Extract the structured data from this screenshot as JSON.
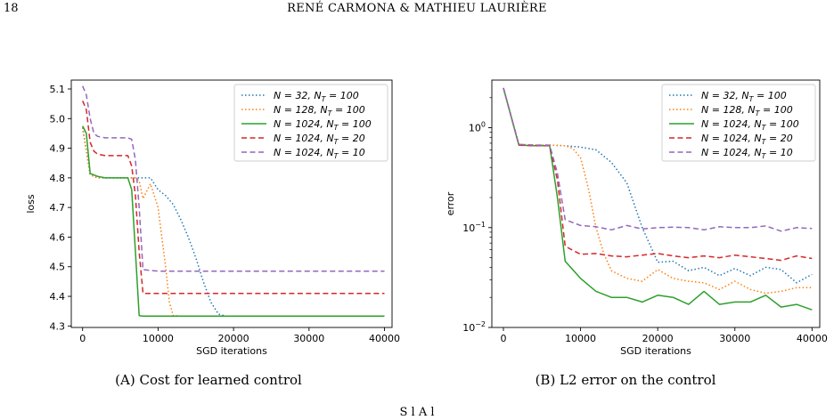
{
  "page": {
    "number": "18",
    "running_head": "RENÉ CARMONA & MATHIEU LAURIÈRE",
    "footer_fragment": "S                                    l   A         l"
  },
  "legend_labels": [
    {
      "n": "N = 32",
      "nt": "N",
      "sub": "T",
      "ntval": " = 100"
    },
    {
      "n": "N = 128",
      "nt": "N",
      "sub": "T",
      "ntval": " = 100"
    },
    {
      "n": "N = 1024",
      "nt": "N",
      "sub": "T",
      "ntval": " = 100"
    },
    {
      "n": "N = 1024",
      "nt": "N",
      "sub": "T",
      "ntval": " = 20"
    },
    {
      "n": "N = 1024",
      "nt": "N",
      "sub": "T",
      "ntval": " = 10"
    }
  ],
  "chart_data": [
    {
      "type": "line",
      "caption": "(A) Cost for learned control",
      "xlabel": "SGD iterations",
      "ylabel": "loss",
      "xlim": [
        -1500,
        41000
      ],
      "ylim": [
        4.295,
        5.13
      ],
      "xticks": [
        0,
        10000,
        20000,
        30000,
        40000
      ],
      "yticks": [
        4.3,
        4.4,
        4.5,
        4.6,
        4.7,
        4.8,
        4.9,
        5.0,
        5.1
      ],
      "legend_position": "top-right",
      "series": [
        {
          "name": "N = 32, N_T = 100",
          "color": "#1f77b4",
          "dash": "1.5,2.5",
          "x": [
            0,
            1000,
            2000,
            3000,
            4000,
            6000,
            7000,
            8000,
            9000,
            10000,
            11000,
            12000,
            13000,
            14000,
            15000,
            16000,
            17000,
            18000,
            19000,
            20000,
            30000,
            40000
          ],
          "y": [
            4.97,
            4.81,
            4.8,
            4.8,
            4.8,
            4.8,
            4.8,
            4.8,
            4.8,
            4.76,
            4.74,
            4.71,
            4.66,
            4.6,
            4.53,
            4.45,
            4.38,
            4.34,
            4.333,
            4.333,
            4.333,
            4.333
          ]
        },
        {
          "name": "N = 128, N_T = 100",
          "color": "#ff7f0e",
          "dash": "1.5,2.5",
          "x": [
            0,
            1000,
            2000,
            3000,
            4000,
            6000,
            7000,
            7500,
            8000,
            9000,
            10000,
            10500,
            11000,
            11500,
            12000,
            13000,
            20000,
            30000,
            40000
          ],
          "y": [
            4.97,
            4.81,
            4.8,
            4.8,
            4.8,
            4.8,
            4.8,
            4.79,
            4.73,
            4.78,
            4.7,
            4.6,
            4.5,
            4.38,
            4.335,
            4.333,
            4.333,
            4.333,
            4.333
          ]
        },
        {
          "name": "N = 1024, N_T = 100",
          "color": "#2ca02c",
          "dash": "",
          "x": [
            0,
            500,
            1000,
            2000,
            3000,
            4000,
            5000,
            6000,
            6500,
            7000,
            7500,
            8000,
            10000,
            20000,
            30000,
            40000
          ],
          "y": [
            4.975,
            4.95,
            4.815,
            4.805,
            4.8,
            4.8,
            4.8,
            4.8,
            4.76,
            4.55,
            4.335,
            4.333,
            4.333,
            4.333,
            4.333,
            4.333
          ]
        },
        {
          "name": "N = 1024, N_T = 20",
          "color": "#d62728",
          "dash": "6,3.5",
          "x": [
            0,
            500,
            1000,
            1500,
            2000,
            3000,
            4000,
            5000,
            6000,
            6500,
            7000,
            7500,
            8000,
            10000,
            20000,
            30000,
            40000
          ],
          "y": [
            5.06,
            5.03,
            4.92,
            4.89,
            4.88,
            4.875,
            4.875,
            4.875,
            4.875,
            4.84,
            4.74,
            4.55,
            4.41,
            4.41,
            4.41,
            4.41,
            4.41
          ]
        },
        {
          "name": "N = 1024, N_T = 10",
          "color": "#9467bd",
          "dash": "6,3.5",
          "x": [
            0,
            500,
            1000,
            1500,
            2000,
            3000,
            4000,
            5000,
            6000,
            6500,
            7000,
            7500,
            8000,
            10000,
            20000,
            30000,
            40000
          ],
          "y": [
            5.11,
            5.08,
            5.0,
            4.95,
            4.94,
            4.935,
            4.935,
            4.935,
            4.935,
            4.93,
            4.86,
            4.7,
            4.49,
            4.485,
            4.485,
            4.485,
            4.485
          ]
        }
      ]
    },
    {
      "type": "line",
      "caption": "(B) L2 error on the control",
      "caption_sup": "2",
      "xlabel": "SGD iterations",
      "ylabel": "error",
      "yscale": "log",
      "xlim": [
        -1500,
        41000
      ],
      "ylim": [
        0.01,
        3.0
      ],
      "xticks": [
        0,
        10000,
        20000,
        30000,
        40000
      ],
      "yticks": [
        0.01,
        0.1,
        1
      ],
      "legend_position": "top-right",
      "series": [
        {
          "name": "N = 32, N_T = 100",
          "color": "#1f77b4",
          "dash": "1.5,2.5",
          "x": [
            0,
            2000,
            4000,
            6000,
            8000,
            10000,
            12000,
            14000,
            16000,
            18000,
            20000,
            22000,
            24000,
            26000,
            28000,
            30000,
            32000,
            34000,
            36000,
            38000,
            40000
          ],
          "y": [
            2.5,
            0.68,
            0.67,
            0.67,
            0.66,
            0.64,
            0.6,
            0.45,
            0.28,
            0.1,
            0.045,
            0.046,
            0.037,
            0.04,
            0.033,
            0.039,
            0.033,
            0.04,
            0.038,
            0.028,
            0.034
          ]
        },
        {
          "name": "N = 128, N_T = 100",
          "color": "#ff7f0e",
          "dash": "1.5,2.5",
          "x": [
            0,
            2000,
            4000,
            6000,
            8000,
            9000,
            10000,
            11000,
            12000,
            13000,
            14000,
            16000,
            18000,
            20000,
            22000,
            24000,
            26000,
            28000,
            30000,
            32000,
            34000,
            36000,
            38000,
            40000
          ],
          "y": [
            2.5,
            0.68,
            0.67,
            0.67,
            0.66,
            0.62,
            0.5,
            0.25,
            0.1,
            0.055,
            0.037,
            0.031,
            0.029,
            0.038,
            0.031,
            0.029,
            0.028,
            0.024,
            0.029,
            0.024,
            0.022,
            0.023,
            0.025,
            0.025
          ]
        },
        {
          "name": "N = 1024, N_T = 100",
          "color": "#2ca02c",
          "dash": "",
          "x": [
            0,
            2000,
            4000,
            6000,
            7000,
            8000,
            10000,
            12000,
            14000,
            16000,
            18000,
            20000,
            22000,
            24000,
            26000,
            28000,
            30000,
            32000,
            34000,
            36000,
            38000,
            40000
          ],
          "y": [
            2.5,
            0.67,
            0.66,
            0.66,
            0.2,
            0.046,
            0.031,
            0.023,
            0.02,
            0.02,
            0.018,
            0.021,
            0.02,
            0.017,
            0.023,
            0.017,
            0.018,
            0.018,
            0.021,
            0.016,
            0.017,
            0.015
          ]
        },
        {
          "name": "N = 1024, N_T = 20",
          "color": "#d62728",
          "dash": "6,3.5",
          "x": [
            0,
            2000,
            4000,
            6000,
            7000,
            8000,
            10000,
            12000,
            14000,
            16000,
            18000,
            20000,
            22000,
            24000,
            26000,
            28000,
            30000,
            32000,
            34000,
            36000,
            38000,
            40000
          ],
          "y": [
            2.5,
            0.67,
            0.66,
            0.66,
            0.3,
            0.065,
            0.054,
            0.055,
            0.052,
            0.051,
            0.053,
            0.055,
            0.052,
            0.05,
            0.052,
            0.05,
            0.053,
            0.051,
            0.049,
            0.047,
            0.052,
            0.049
          ]
        },
        {
          "name": "N = 1024, N_T = 10",
          "color": "#9467bd",
          "dash": "6,3.5",
          "x": [
            0,
            2000,
            4000,
            6000,
            7000,
            8000,
            10000,
            12000,
            14000,
            16000,
            18000,
            20000,
            22000,
            24000,
            26000,
            28000,
            30000,
            32000,
            34000,
            36000,
            38000,
            40000
          ],
          "y": [
            2.5,
            0.68,
            0.67,
            0.67,
            0.35,
            0.12,
            0.105,
            0.102,
            0.095,
            0.105,
            0.097,
            0.1,
            0.101,
            0.1,
            0.095,
            0.102,
            0.1,
            0.1,
            0.104,
            0.092,
            0.1,
            0.098
          ]
        }
      ]
    }
  ]
}
